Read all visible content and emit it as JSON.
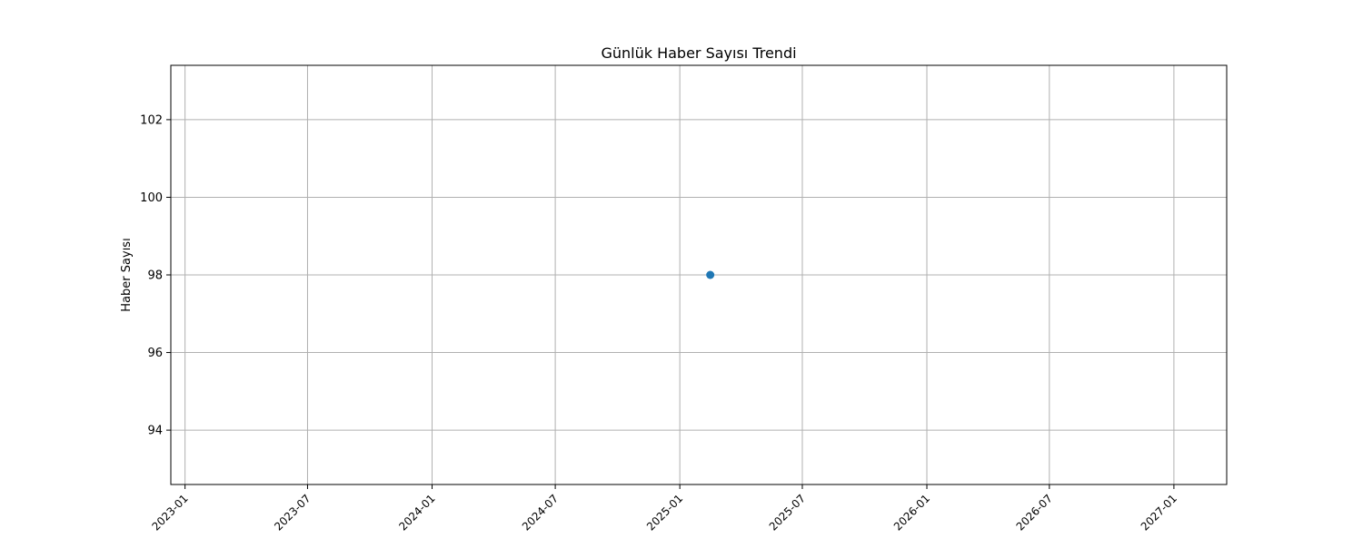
{
  "chart_data": {
    "type": "scatter",
    "title": "Günlük Haber Sayısı Trendi",
    "xlabel": "",
    "ylabel": "Haber Sayısı",
    "x_type": "date",
    "xlim": [
      "2022-12-11",
      "2027-03-20"
    ],
    "ylim": [
      92.6,
      103.4
    ],
    "x_ticks": [
      "2023-01",
      "2023-07",
      "2024-01",
      "2024-07",
      "2025-01",
      "2025-07",
      "2026-01",
      "2026-07",
      "2027-01"
    ],
    "y_ticks": [
      94,
      96,
      98,
      100,
      102
    ],
    "grid": true,
    "series": [
      {
        "color": "#1f77b4",
        "points": [
          {
            "x": "2025-02-15",
            "y": 98
          }
        ]
      }
    ]
  }
}
